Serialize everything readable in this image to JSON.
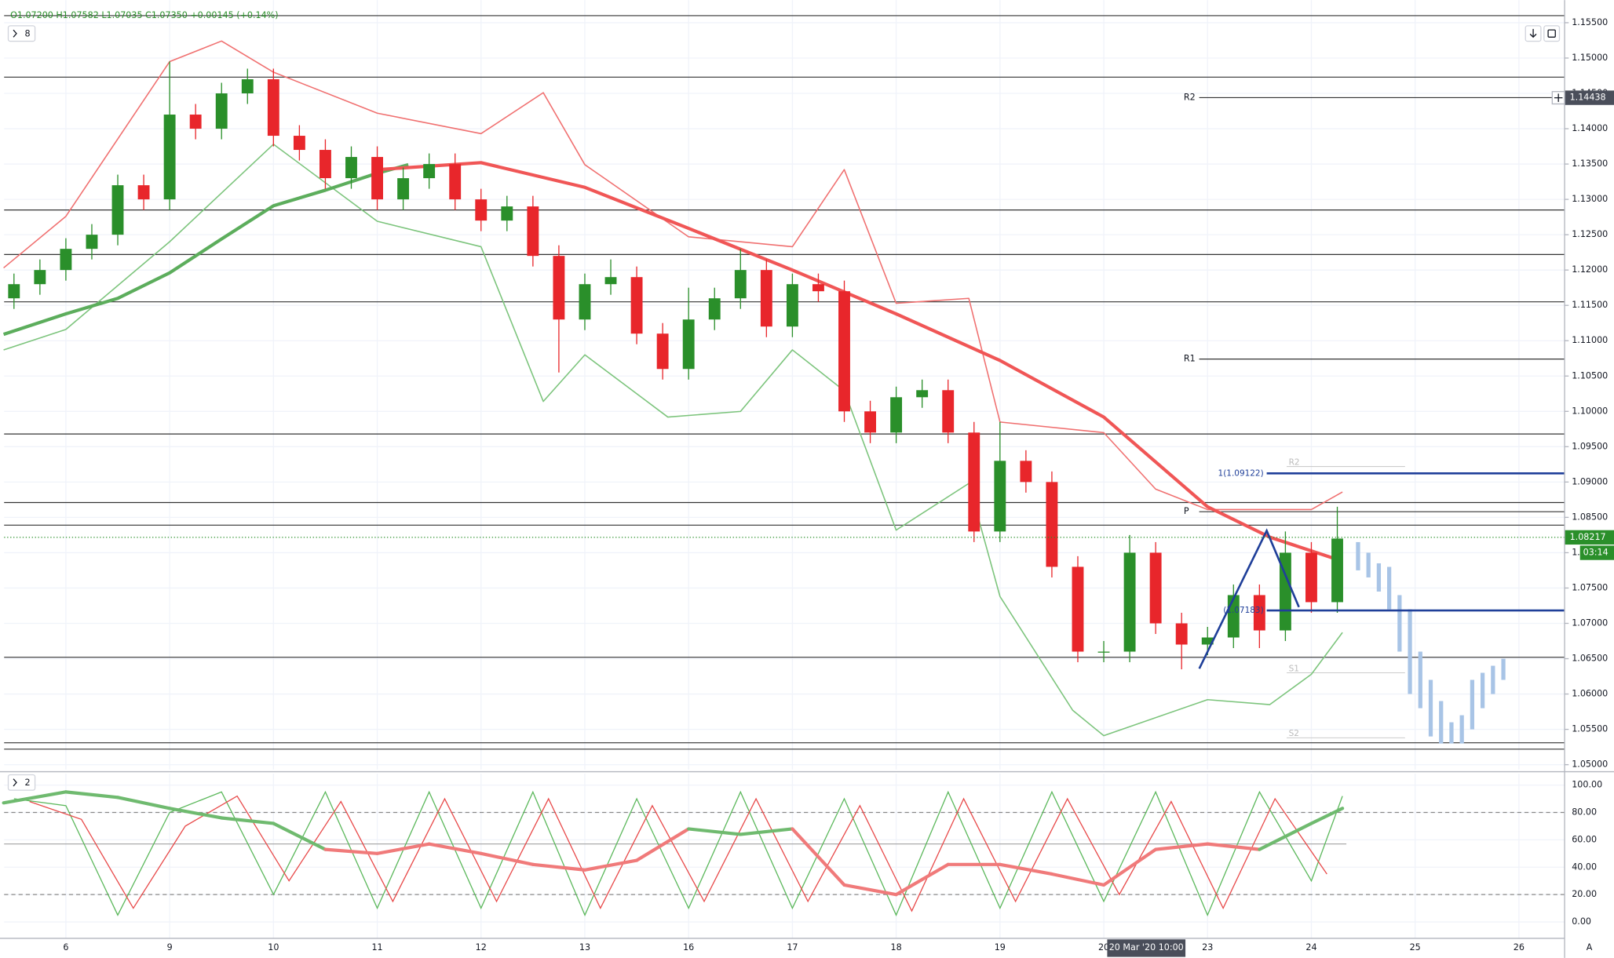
{
  "chart_data": [
    {
      "type": "candlestick",
      "header": "O1.07200 H1.07582 L1.07035 C1.07350 +0.00145 (+0.14%)",
      "panel_label": "8",
      "up_color": "#2a8f2a",
      "down_color": "#e8262b",
      "xlim": [
        -0.595,
        14.44
      ],
      "ylim": [
        1.0493,
        1.1582
      ],
      "yticks": [
        {
          "value": 1.05,
          "label": "1.05000"
        },
        {
          "value": 1.055,
          "label": "1.05500"
        },
        {
          "value": 1.06,
          "label": "1.06000"
        },
        {
          "value": 1.065,
          "label": "1.06500"
        },
        {
          "value": 1.07,
          "label": "1.07000"
        },
        {
          "value": 1.075,
          "label": "1.07500"
        },
        {
          "value": 1.08,
          "label": "1.08000"
        },
        {
          "value": 1.085,
          "label": "1.08500"
        },
        {
          "value": 1.09,
          "label": "1.09000"
        },
        {
          "value": 1.095,
          "label": "1.09500"
        },
        {
          "value": 1.1,
          "label": "1.10000"
        },
        {
          "value": 1.105,
          "label": "1.10500"
        },
        {
          "value": 1.11,
          "label": "1.11000"
        },
        {
          "value": 1.115,
          "label": "1.11500"
        },
        {
          "value": 1.12,
          "label": "1.12000"
        },
        {
          "value": 1.125,
          "label": "1.12500"
        },
        {
          "value": 1.13,
          "label": "1.13000"
        },
        {
          "value": 1.135,
          "label": "1.13500"
        },
        {
          "value": 1.14,
          "label": "1.14000"
        },
        {
          "value": 1.145,
          "label": "1.14500"
        },
        {
          "value": 1.15,
          "label": "1.15000"
        },
        {
          "value": 1.155,
          "label": "1.15500"
        }
      ],
      "x": [
        -0.5,
        -0.25,
        0,
        0.25,
        0.5,
        0.75,
        1,
        1.25,
        1.5,
        1.75,
        2,
        2.25,
        2.5,
        2.75,
        3,
        3.25,
        3.5,
        3.75,
        4,
        4.25,
        4.5,
        4.75,
        5,
        5.25,
        5.5,
        5.75,
        6,
        6.25,
        6.5,
        6.75,
        7,
        7.25,
        7.5,
        7.75,
        8,
        8.25,
        8.5,
        8.75,
        9,
        9.25,
        9.5,
        9.75,
        10,
        10.25,
        10.5,
        10.75,
        11,
        11.25,
        11.5,
        11.75,
        12,
        12.25
      ],
      "open": [
        1.116,
        1.118,
        1.12,
        1.123,
        1.125,
        1.132,
        1.13,
        1.142,
        1.14,
        1.145,
        1.147,
        1.139,
        1.137,
        1.133,
        1.136,
        1.13,
        1.133,
        1.135,
        1.13,
        1.127,
        1.129,
        1.122,
        1.113,
        1.118,
        1.119,
        1.111,
        1.106,
        1.113,
        1.116,
        1.12,
        1.112,
        1.118,
        1.117,
        1.1,
        1.097,
        1.102,
        1.103,
        1.097,
        1.083,
        1.093,
        1.09,
        1.078,
        1.066,
        1.066,
        1.08,
        1.07,
        1.067,
        1.068,
        1.074,
        1.069,
        1.08,
        1.073
      ],
      "high": [
        1.1195,
        1.1215,
        1.1245,
        1.1265,
        1.1335,
        1.1335,
        1.1495,
        1.1435,
        1.1465,
        1.1485,
        1.1485,
        1.1405,
        1.1385,
        1.1375,
        1.1375,
        1.1345,
        1.1365,
        1.1365,
        1.1315,
        1.1305,
        1.1305,
        1.1235,
        1.1195,
        1.1215,
        1.1205,
        1.1125,
        1.1175,
        1.1175,
        1.123,
        1.1215,
        1.1195,
        1.1195,
        1.1185,
        1.1015,
        1.1035,
        1.1045,
        1.1045,
        1.0985,
        1.0985,
        1.0945,
        1.0915,
        1.0795,
        1.0675,
        1.0825,
        1.0815,
        1.0715,
        1.0695,
        1.0755,
        1.0755,
        1.083,
        1.0815,
        1.0865
      ],
      "low": [
        1.1145,
        1.1165,
        1.1185,
        1.1215,
        1.1235,
        1.1285,
        1.1285,
        1.1385,
        1.1385,
        1.1435,
        1.1375,
        1.1355,
        1.1315,
        1.1315,
        1.1285,
        1.1285,
        1.1315,
        1.1285,
        1.1255,
        1.1255,
        1.1205,
        1.1055,
        1.1115,
        1.1165,
        1.1095,
        1.1045,
        1.1045,
        1.1115,
        1.1145,
        1.1105,
        1.1105,
        1.1155,
        1.0985,
        1.0955,
        1.0955,
        1.1005,
        1.0955,
        1.0815,
        1.0815,
        1.0885,
        1.0765,
        1.0645,
        1.0645,
        1.0645,
        1.0685,
        1.0635,
        1.0655,
        1.0665,
        1.0665,
        1.0675,
        1.0715,
        1.0715
      ],
      "close": [
        1.118,
        1.12,
        1.123,
        1.125,
        1.132,
        1.13,
        1.142,
        1.14,
        1.145,
        1.147,
        1.139,
        1.137,
        1.133,
        1.136,
        1.13,
        1.133,
        1.135,
        1.13,
        1.127,
        1.129,
        1.122,
        1.113,
        1.118,
        1.119,
        1.111,
        1.106,
        1.113,
        1.116,
        1.12,
        1.112,
        1.118,
        1.117,
        1.1,
        1.097,
        1.102,
        1.103,
        1.097,
        1.083,
        1.093,
        1.09,
        1.078,
        1.066,
        1.066,
        1.08,
        1.07,
        1.067,
        1.068,
        1.074,
        1.069,
        1.08,
        1.073,
        1.082
      ],
      "overlays": [
        {
          "color": "#f07070",
          "width": 1.2,
          "x": [
            -0.6,
            0,
            1,
            1.5,
            2,
            3,
            4,
            4.6,
            5,
            6,
            7,
            7.5,
            8,
            8.7,
            9,
            10,
            10.5,
            11,
            12,
            12.3
          ],
          "values": [
            1.1203,
            1.1276,
            1.1495,
            1.1524,
            1.148,
            1.1422,
            1.1393,
            1.1451,
            1.1349,
            1.1247,
            1.1233,
            1.1342,
            1.1153,
            1.116,
            1.0985,
            1.097,
            1.089,
            1.0861,
            1.0861,
            1.0886
          ]
        },
        {
          "color": "#7cc47c",
          "width": 1.2,
          "x": [
            -0.6,
            0,
            1,
            2,
            3,
            4,
            4.6,
            5,
            5.8,
            6.5,
            7,
            7.5,
            8,
            8.7,
            9,
            9.7,
            10,
            11,
            11.6,
            12,
            12.3
          ],
          "values": [
            1.1087,
            1.1116,
            1.124,
            1.1378,
            1.1269,
            1.1233,
            1.1014,
            1.108,
            1.0992,
            1.1,
            1.1087,
            1.1029,
            1.0832,
            1.0898,
            1.0738,
            1.0577,
            1.0541,
            1.0592,
            1.0585,
            1.0628,
            1.0687
          ]
        },
        {
          "color": "#5cad5c",
          "width": 3.2,
          "x": [
            -0.6,
            0,
            0.5,
            1,
            1.5,
            2,
            2.5,
            3,
            3.3
          ],
          "values": [
            1.1109,
            1.1138,
            1.116,
            1.1196,
            1.1244,
            1.1291,
            1.1313,
            1.1337,
            1.1349
          ]
        },
        {
          "color": "#f05656",
          "width": 3.2,
          "x": [
            3,
            4,
            5,
            6,
            7,
            8,
            9,
            10,
            11,
            11.6,
            12.3
          ],
          "values": [
            1.1342,
            1.1352,
            1.1317,
            1.1259,
            1.12,
            1.1138,
            1.1072,
            1.0992,
            1.0865,
            1.0822,
            1.0788
          ]
        }
      ],
      "levels": [
        1.156,
        1.1473,
        1.1285,
        1.1222,
        1.1155,
        1.0968,
        1.0871,
        1.0839,
        1.0652,
        1.0531,
        1.0522
      ],
      "pivots": [
        {
          "label": "R2",
          "value": 1.1444
        },
        {
          "label": "R1",
          "value": 1.1074
        },
        {
          "label": "P",
          "value": 1.0858
        }
      ],
      "faded_pivots": [
        {
          "label": "R2",
          "value": 1.0922
        },
        {
          "label": "S1",
          "value": 1.063
        },
        {
          "label": "S2",
          "value": 1.0538
        }
      ],
      "fib_lines": [
        {
          "label": "1(1.09122)",
          "value": 1.09122
        },
        {
          "label": "(1.07183)",
          "value": 1.07183
        }
      ],
      "fib_start": 11.57,
      "pattern": {
        "color": "#1f3f99",
        "x": [
          10.92,
          11.57,
          11.88
        ],
        "values": [
          1.0636,
          1.0831,
          1.0723
        ]
      },
      "projection": {
        "color": "#a8c4e6",
        "x": [
          12.45,
          12.55,
          12.65,
          12.75,
          12.85,
          12.95,
          13.05,
          13.15,
          13.25,
          13.35,
          13.45,
          13.55,
          13.65,
          13.75,
          13.85
        ],
        "high": [
          1.0815,
          1.08,
          1.0785,
          1.078,
          1.074,
          1.072,
          1.066,
          1.062,
          1.059,
          1.056,
          1.057,
          1.062,
          1.063,
          1.064,
          1.065
        ],
        "low": [
          1.0775,
          1.0765,
          1.0745,
          1.072,
          1.066,
          1.06,
          1.058,
          1.054,
          1.053,
          1.053,
          1.053,
          1.055,
          1.058,
          1.06,
          1.062
        ]
      },
      "last_price": {
        "value": 1.08217,
        "label": "1.08217",
        "countdown": "03:14"
      },
      "crosshair_price": {
        "value": 1.14438,
        "label": "1.14438"
      }
    },
    {
      "type": "oscillator",
      "panel_label": "2",
      "xlim": [
        -0.595,
        14.44
      ],
      "ylim": [
        -12,
        108.3
      ],
      "yticks": [
        {
          "value": 0,
          "label": "0.00"
        },
        {
          "value": 20,
          "label": "20.00"
        },
        {
          "value": 40,
          "label": "40.00"
        },
        {
          "value": 60,
          "label": "60.00"
        },
        {
          "value": 80,
          "label": "80.00"
        },
        {
          "value": 100,
          "label": "100.00"
        }
      ],
      "xticks": [
        {
          "value": 0,
          "label": "6"
        },
        {
          "value": 1,
          "label": "9"
        },
        {
          "value": 2,
          "label": "10"
        },
        {
          "value": 3,
          "label": "11"
        },
        {
          "value": 4,
          "label": "12"
        },
        {
          "value": 5,
          "label": "13"
        },
        {
          "value": 6,
          "label": "16"
        },
        {
          "value": 7,
          "label": "17"
        },
        {
          "value": 8,
          "label": "18"
        },
        {
          "value": 9,
          "label": "19"
        },
        {
          "value": 10,
          "label": "20"
        },
        {
          "value": 11,
          "label": "23"
        },
        {
          "value": 12,
          "label": "24"
        },
        {
          "value": 13,
          "label": "25"
        },
        {
          "value": 14,
          "label": "26"
        }
      ],
      "levels": [
        80,
        20
      ],
      "threshold": 57,
      "main": {
        "x": [
          -0.6,
          0,
          0.5,
          1,
          1.5,
          2,
          2.5,
          3,
          3.5,
          4,
          4.5,
          5,
          5.5,
          6,
          6.5,
          7,
          7.5,
          8,
          8.5,
          9,
          9.5,
          10,
          10.5,
          11,
          11.5,
          12,
          12.3
        ],
        "values": [
          87,
          95,
          91,
          83,
          76,
          72,
          53,
          50,
          57,
          50,
          42,
          38,
          45,
          68,
          64,
          68,
          27,
          20,
          42,
          42,
          35,
          27,
          53,
          57,
          53,
          72,
          83
        ],
        "colors": [
          "#6fba6f",
          "#f07a7a"
        ]
      },
      "series": [
        {
          "color": "#5cb85c",
          "x": [
            -0.5,
            0,
            0.5,
            1,
            1.5,
            2,
            2.5,
            3,
            3.5,
            4,
            4.5,
            5,
            5.5,
            6,
            6.5,
            7,
            7.5,
            8,
            8.5,
            9,
            9.5,
            10,
            10.5,
            11,
            11.5,
            12,
            12.3
          ],
          "values": [
            90,
            85,
            5,
            80,
            95,
            20,
            95,
            10,
            95,
            10,
            95,
            5,
            90,
            10,
            95,
            10,
            90,
            5,
            95,
            10,
            95,
            15,
            95,
            5,
            95,
            30,
            92
          ]
        },
        {
          "color": "#e84a4a",
          "x": [
            -0.35,
            0.15,
            0.65,
            1.15,
            1.65,
            2.15,
            2.65,
            3.15,
            3.65,
            4.15,
            4.65,
            5.15,
            5.65,
            6.15,
            6.65,
            7.15,
            7.65,
            8.15,
            8.65,
            9.15,
            9.65,
            10.15,
            10.65,
            11.15,
            11.65,
            12.15
          ],
          "values": [
            88,
            75,
            10,
            70,
            92,
            30,
            88,
            15,
            90,
            15,
            90,
            10,
            85,
            15,
            90,
            15,
            85,
            8,
            90,
            15,
            90,
            20,
            88,
            10,
            90,
            35
          ]
        }
      ],
      "crosshair_time": {
        "value": 10.41,
        "label": "20 Mar '20  10:00"
      },
      "scale_mode": "A"
    }
  ]
}
